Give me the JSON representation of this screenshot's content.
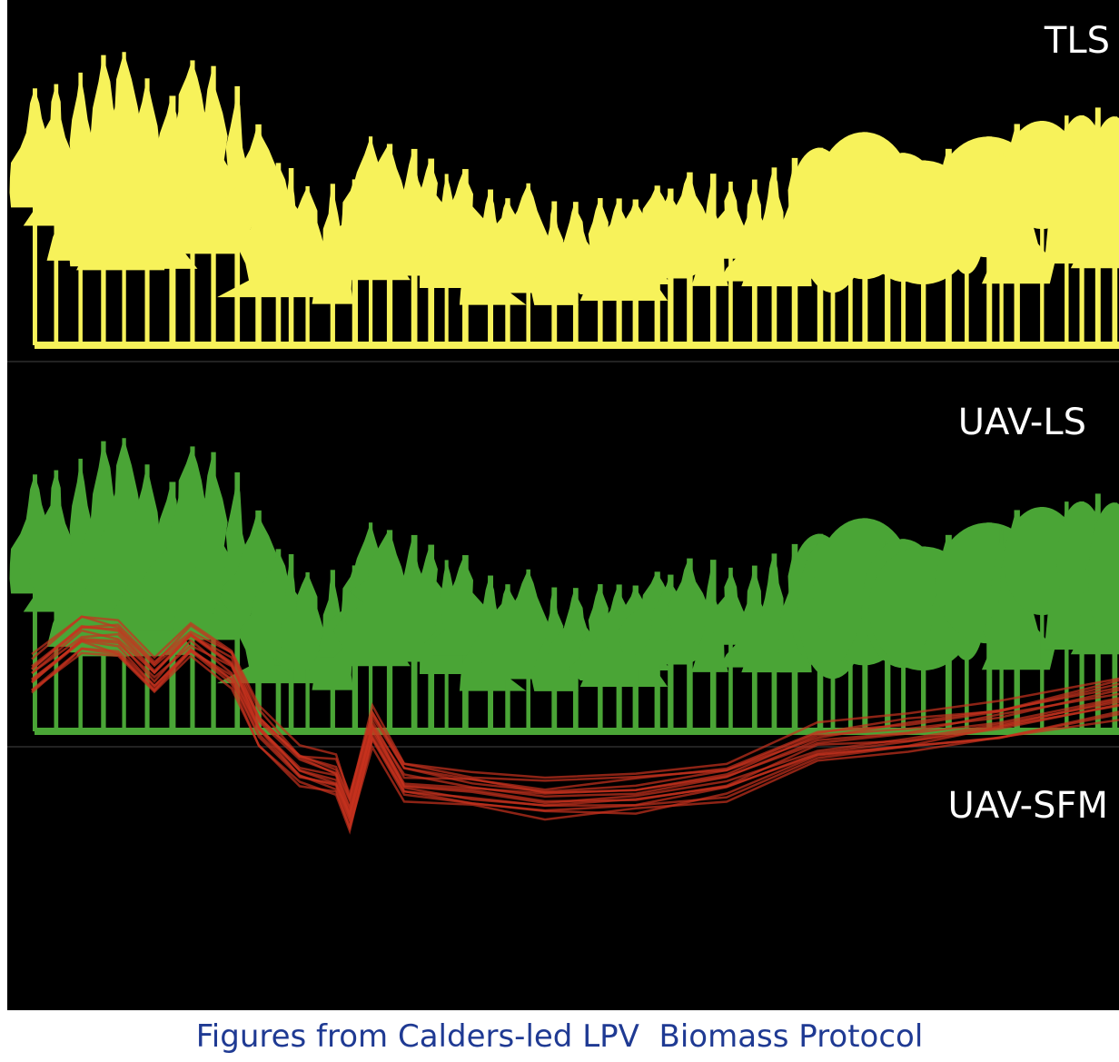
{
  "panels": [
    {
      "label": "TLS"
    },
    {
      "label": "UAV-LS"
    },
    {
      "label": "UAV-SFM"
    }
  ],
  "caption": "Figures from Calders-led LPV  Biomass Protocol"
}
